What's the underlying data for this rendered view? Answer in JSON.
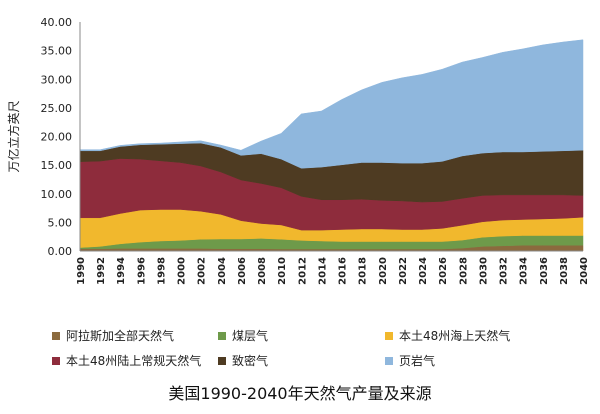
{
  "chart_data": {
    "type": "area",
    "title": "",
    "ylabel": "万亿立方英尺",
    "xlabel": "",
    "ylim": [
      0,
      40
    ],
    "yticks": [
      "0.00",
      "5.00",
      "10.00",
      "15.00",
      "20.00",
      "25.00",
      "30.00",
      "35.00",
      "40.00"
    ],
    "x": [
      1990,
      1992,
      1994,
      1996,
      1998,
      2000,
      2002,
      2004,
      2006,
      2008,
      2010,
      2012,
      2014,
      2016,
      2018,
      2020,
      2022,
      2024,
      2026,
      2028,
      2030,
      2032,
      2034,
      2036,
      2038,
      2040
    ],
    "xtick_labels": [
      "1990",
      "1992",
      "1994",
      "1996",
      "1998",
      "2000",
      "2002",
      "2004",
      "2006",
      "2008",
      "2010",
      "2012",
      "2014",
      "2016",
      "2018",
      "2020",
      "2022",
      "2024",
      "2026",
      "2028",
      "2030",
      "2032",
      "2034",
      "2036",
      "2038",
      "2040"
    ],
    "stacking": "stacked",
    "series": [
      {
        "name": "阿拉斯加全部天然气",
        "color": "#8B6A3E",
        "values": [
          0.4,
          0.4,
          0.45,
          0.45,
          0.45,
          0.45,
          0.45,
          0.4,
          0.4,
          0.4,
          0.35,
          0.35,
          0.35,
          0.35,
          0.35,
          0.35,
          0.35,
          0.35,
          0.35,
          0.5,
          0.8,
          0.9,
          1.0,
          1.0,
          1.0,
          1.0
        ]
      },
      {
        "name": "煤层气",
        "color": "#6E9A4A",
        "values": [
          0.2,
          0.4,
          0.8,
          1.1,
          1.3,
          1.4,
          1.6,
          1.7,
          1.7,
          1.8,
          1.7,
          1.5,
          1.4,
          1.3,
          1.3,
          1.3,
          1.3,
          1.3,
          1.3,
          1.4,
          1.6,
          1.7,
          1.7,
          1.7,
          1.7,
          1.7
        ]
      },
      {
        "name": "本土48州海上天然气",
        "color": "#F1B82D",
        "values": [
          5.2,
          5.0,
          5.3,
          5.6,
          5.5,
          5.4,
          4.9,
          4.3,
          3.2,
          2.6,
          2.5,
          1.8,
          1.9,
          2.1,
          2.2,
          2.2,
          2.1,
          2.1,
          2.3,
          2.6,
          2.7,
          2.8,
          2.8,
          2.9,
          3.0,
          3.2
        ]
      },
      {
        "name": "本土48州陆上常规天然气",
        "color": "#8E2C3C",
        "values": [
          9.8,
          9.9,
          9.6,
          8.9,
          8.5,
          8.2,
          7.9,
          7.4,
          7.1,
          7.0,
          6.5,
          5.9,
          5.3,
          5.2,
          5.2,
          5.0,
          5.0,
          4.8,
          4.7,
          4.7,
          4.6,
          4.4,
          4.3,
          4.2,
          4.1,
          3.8
        ]
      },
      {
        "name": "致密气",
        "color": "#4E3B22",
        "values": [
          1.9,
          1.8,
          2.1,
          2.5,
          2.9,
          3.3,
          4.0,
          4.3,
          4.3,
          5.2,
          5.0,
          4.9,
          5.7,
          6.1,
          6.4,
          6.6,
          6.6,
          6.8,
          7.0,
          7.4,
          7.4,
          7.5,
          7.5,
          7.6,
          7.7,
          7.9
        ]
      },
      {
        "name": "页岩气",
        "color": "#8FB7DD",
        "values": [
          0.2,
          0.2,
          0.2,
          0.2,
          0.2,
          0.3,
          0.4,
          0.4,
          0.9,
          2.2,
          4.5,
          9.5,
          9.8,
          11.4,
          12.7,
          14.0,
          14.9,
          15.5,
          16.1,
          16.4,
          16.7,
          17.4,
          18.0,
          18.6,
          19.0,
          19.3
        ]
      }
    ],
    "grid": false,
    "legend_position": "bottom",
    "caption": "美国1990-2040年天然气产量及来源"
  }
}
